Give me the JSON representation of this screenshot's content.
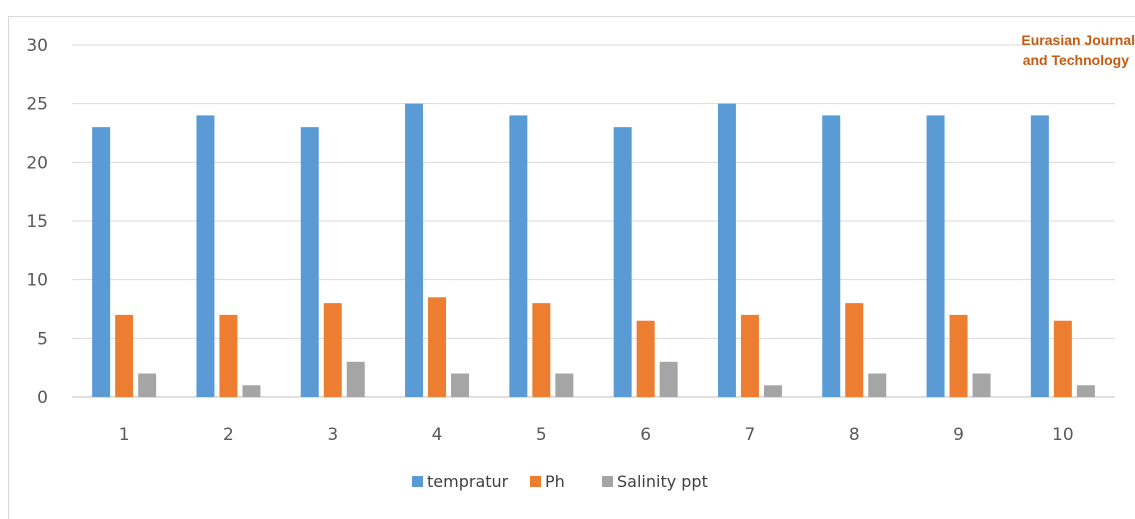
{
  "chart_data": {
    "type": "bar",
    "categories": [
      "1",
      "2",
      "3",
      "4",
      "5",
      "6",
      "7",
      "8",
      "9",
      "10"
    ],
    "series": [
      {
        "name": "tempratur",
        "color": "#5b9bd5",
        "values": [
          23,
          24,
          23,
          25,
          24,
          23,
          25,
          24,
          24,
          24
        ]
      },
      {
        "name": "Ph",
        "color": "#ed7d31",
        "values": [
          7,
          7,
          8,
          8.5,
          8,
          6.5,
          7,
          8,
          7,
          6.5
        ]
      },
      {
        "name": "Salinity ppt",
        "color": "#a5a5a5",
        "values": [
          2,
          1,
          3,
          2,
          2,
          3,
          1,
          2,
          2,
          1
        ]
      }
    ],
    "yticks": [
      "0",
      "5",
      "10",
      "15",
      "20",
      "25",
      "30"
    ],
    "ylim": [
      0,
      30
    ],
    "grid": true,
    "legend_position": "bottom",
    "xlabel": "",
    "ylabel": ""
  },
  "watermark": {
    "line1": "Eurasian Journal",
    "line2": "and Technology"
  }
}
